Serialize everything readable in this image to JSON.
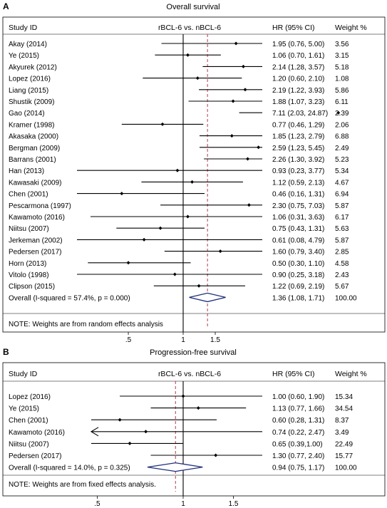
{
  "chart_data": [
    {
      "type": "forest",
      "panel_label": "A",
      "title": "Overall survival",
      "header": {
        "study": "Study ID",
        "comparison": "rBCL-6 vs. nBCL-6",
        "hr": "HR (95% CI)",
        "weight": "Weight %"
      },
      "xticks": [
        ".5",
        "1",
        "1.5"
      ],
      "xtick_values": [
        0.5,
        1,
        1.5
      ],
      "reference_line": 1,
      "overall_line": 1.36,
      "studies": [
        {
          "name": "Akay (2014)",
          "hr": 1.95,
          "lo": 0.76,
          "hi": 5.0,
          "hr_text": "1.95 (0.76, 5.00)",
          "weight": "3.56"
        },
        {
          "name": "Ye (2015)",
          "hr": 1.06,
          "lo": 0.7,
          "hi": 1.61,
          "hr_text": "1.06 (0.70, 1.61)",
          "weight": "3.15"
        },
        {
          "name": "Akyurek (2012)",
          "hr": 2.14,
          "lo": 1.28,
          "hi": 3.57,
          "hr_text": "2.14 (1.28, 3.57)",
          "weight": "5.18"
        },
        {
          "name": "Lopez (2016)",
          "hr": 1.2,
          "lo": 0.6,
          "hi": 2.1,
          "hr_text": "1.20 (0.60, 2.10)",
          "weight": "1.08"
        },
        {
          "name": "Liang (2015)",
          "hr": 2.19,
          "lo": 1.22,
          "hi": 3.93,
          "hr_text": "2.19 (1.22, 3.93)",
          "weight": "5.86"
        },
        {
          "name": "Shustik (2009)",
          "hr": 1.88,
          "lo": 1.07,
          "hi": 3.23,
          "hr_text": "1.88 (1.07, 3.23)",
          "weight": "6.11"
        },
        {
          "name": "Gao (2014)",
          "hr": 7.11,
          "lo": 2.03,
          "hi": 24.87,
          "hr_text": "7.11 (2.03, 24.87)",
          "weight": "2.39"
        },
        {
          "name": "Kramer (1998)",
          "hr": 0.77,
          "lo": 0.46,
          "hi": 1.29,
          "hr_text": "0.77 (0.46, 1.29)",
          "weight": "2.06"
        },
        {
          "name": "Akasaka (2000)",
          "hr": 1.85,
          "lo": 1.23,
          "hi": 2.79,
          "hr_text": "1.85 (1.23, 2.79)",
          "weight": "6.88"
        },
        {
          "name": "Bergman (2009)",
          "hr": 2.59,
          "lo": 1.23,
          "hi": 5.45,
          "hr_text": "2.59 (1.23, 5.45)",
          "weight": "2.49"
        },
        {
          "name": "Barrans (2001)",
          "hr": 2.26,
          "lo": 1.3,
          "hi": 3.92,
          "hr_text": "2.26 (1.30, 3.92)",
          "weight": "5.23"
        },
        {
          "name": "Han (2013)",
          "hr": 0.93,
          "lo": 0.23,
          "hi": 3.77,
          "hr_text": "0.93 (0.23, 3.77)",
          "weight": "5.34"
        },
        {
          "name": "Kawasaki (2009)",
          "hr": 1.12,
          "lo": 0.59,
          "hi": 2.13,
          "hr_text": "1.12 (0.59, 2.13)",
          "weight": "4.67"
        },
        {
          "name": "Chen (2001)",
          "hr": 0.46,
          "lo": 0.16,
          "hi": 1.31,
          "hr_text": "0.46 (0.16, 1.31)",
          "weight": "6.94"
        },
        {
          "name": "Pescarmona (1997)",
          "hr": 2.3,
          "lo": 0.75,
          "hi": 7.03,
          "hr_text": "2.30 (0.75, 7.03)",
          "weight": "5.87"
        },
        {
          "name": "Kawamoto (2016)",
          "hr": 1.06,
          "lo": 0.31,
          "hi": 3.63,
          "hr_text": "1.06 (0.31, 3.63)",
          "weight": "6.17"
        },
        {
          "name": "Niitsu (2007)",
          "hr": 0.75,
          "lo": 0.43,
          "hi": 1.31,
          "hr_text": "0.75 (0.43, 1.31)",
          "weight": "5.63"
        },
        {
          "name": "Jerkeman (2002)",
          "hr": 0.61,
          "lo": 0.08,
          "hi": 4.79,
          "hr_text": "0.61 (0.08, 4.79)",
          "weight": "5.87"
        },
        {
          "name": "Pedersen (2017)",
          "hr": 1.6,
          "lo": 0.79,
          "hi": 3.4,
          "hr_text": "1.60 (0.79, 3.40)",
          "weight": "2.85"
        },
        {
          "name": "Horn (2013)",
          "hr": 0.5,
          "lo": 0.3,
          "hi": 1.1,
          "hr_text": "0.50 (0.30, 1.10)",
          "weight": "4.58"
        },
        {
          "name": "Vitolo (1998)",
          "hr": 0.9,
          "lo": 0.25,
          "hi": 3.18,
          "hr_text": "0.90 (0.25, 3.18)",
          "weight": "2.43"
        },
        {
          "name": "Clipson (2015)",
          "hr": 1.22,
          "lo": 0.69,
          "hi": 2.19,
          "hr_text": "1.22 (0.69, 2.19)",
          "weight": "5.67"
        }
      ],
      "overall": {
        "label": "Overall  (I-squared = 57.4%, p = 0.000)",
        "hr": 1.36,
        "lo": 1.08,
        "hi": 1.71,
        "hr_text": "1.36 (1.08, 1.71)",
        "weight": "100.00"
      },
      "note": "NOTE: Weights are from random effects analysis"
    },
    {
      "type": "forest",
      "panel_label": "B",
      "title": "Progression-free survival",
      "header": {
        "study": "Study  ID",
        "comparison": "rBCL-6 vs. nBCL-6",
        "hr": "HR (95% CI)",
        "weight": "Weight %"
      },
      "xticks": [
        ".5",
        "1",
        "1.5"
      ],
      "xtick_values": [
        0.5,
        1,
        1.5
      ],
      "reference_line": 1,
      "overall_line": 0.94,
      "studies": [
        {
          "name": "Lopez (2016)",
          "hr": 1.0,
          "lo": 0.6,
          "hi": 1.9,
          "hr_text": "1.00 (0.60, 1.90)",
          "weight": "15.34"
        },
        {
          "name": "Ye (2015)",
          "hr": 1.13,
          "lo": 0.77,
          "hi": 1.66,
          "hr_text": "1.13 (0.77, 1.66)",
          "weight": "34.54"
        },
        {
          "name": "Chen (2001)",
          "hr": 0.6,
          "lo": 0.28,
          "hi": 1.31,
          "hr_text": "0.60 (0.28, 1.31)",
          "weight": "8.37"
        },
        {
          "name": "Kawamoto (2016)",
          "hr": 0.74,
          "lo": 0.22,
          "hi": 2.47,
          "hr_text": "0.74 (0.22, 2.47)",
          "weight": "3.49",
          "arrow_left": true
        },
        {
          "name": "Niitsu (2007)",
          "hr": 0.65,
          "lo": 0.39,
          "hi": 1.0,
          "hr_text": "0.65 (0.39,1.00)",
          "weight": "22.49"
        },
        {
          "name": "Pedersen (2017)",
          "hr": 1.3,
          "lo": 0.77,
          "hi": 2.4,
          "hr_text": "1.30 (0.77, 2.40)",
          "weight": "15.77"
        }
      ],
      "overall": {
        "label": "Overall (I-squared = 14.0%, p = 0.325)",
        "hr": 0.94,
        "lo": 0.75,
        "hi": 1.17,
        "hr_text": "0.94 (0.75, 1.17)",
        "weight": "100.00"
      },
      "note": "NOTE: Weights are from fixed effects analysis."
    }
  ]
}
